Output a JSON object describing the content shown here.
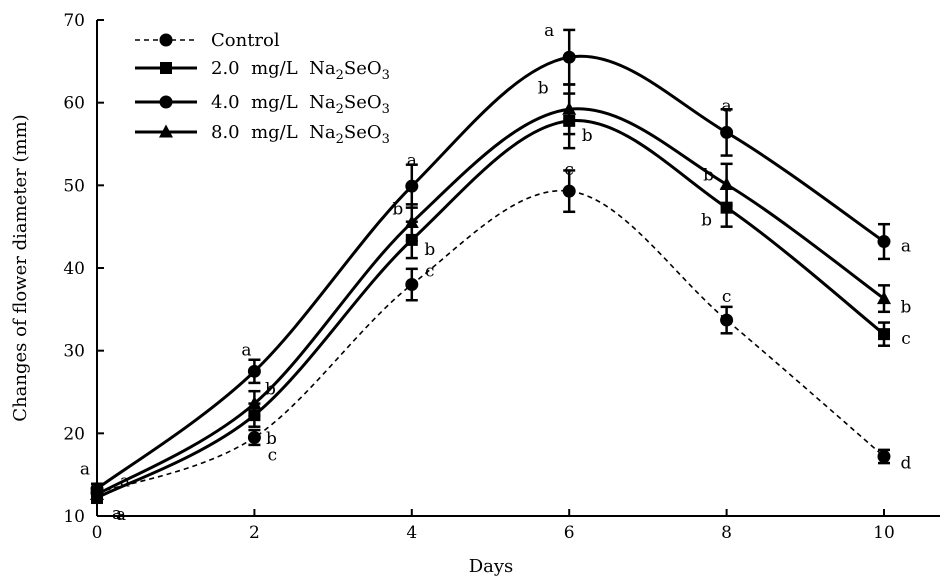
{
  "chart_data": {
    "type": "line",
    "title": "",
    "xlabel": "Days",
    "ylabel": "Changes of flower diameter (mm)",
    "x": [
      0,
      2,
      4,
      6,
      8,
      10
    ],
    "xlim": [
      0,
      10
    ],
    "ylim": [
      10,
      70
    ],
    "xticks": [
      "0",
      "2",
      "4",
      "6",
      "8",
      "10"
    ],
    "yticks": [
      "10",
      "20",
      "30",
      "40",
      "50",
      "60",
      "70"
    ],
    "grid": false,
    "legend_position": "top-left",
    "series": [
      {
        "name": "Control",
        "style": "dashed",
        "marker": "circle",
        "values": [
          12.8,
          19.5,
          38,
          49.3,
          33.7,
          17.2
        ],
        "errors": [
          0.6,
          0.9,
          1.9,
          2.5,
          1.6,
          0.8
        ],
        "letters": [
          "a",
          "c",
          "c",
          "c",
          "c",
          "d"
        ]
      },
      {
        "name": "2.0 mg/L Na2SeO3",
        "style": "solid",
        "marker": "square",
        "values": [
          12.2,
          22.2,
          43.4,
          57.8,
          47.3,
          32
        ],
        "errors": [
          0.6,
          1.4,
          2.2,
          3.3,
          2.3,
          1.4
        ],
        "letters": [
          "a",
          "b",
          "b",
          "b",
          "b",
          "c"
        ]
      },
      {
        "name": "4.0 mg/L Na2SeO3",
        "style": "solid",
        "marker": "circle",
        "values": [
          13.3,
          27.5,
          49.9,
          65.5,
          56.4,
          43.2
        ],
        "errors": [
          0.6,
          1.4,
          2.6,
          3.3,
          2.8,
          2.1
        ],
        "letters": [
          "a",
          "a",
          "a",
          "a",
          "a",
          "a"
        ]
      },
      {
        "name": "8.0 mg/L Na2SeO3",
        "style": "solid",
        "marker": "triangle",
        "values": [
          12.6,
          23.6,
          45.5,
          59.2,
          50.1,
          36.3
        ],
        "errors": [
          0.6,
          1.5,
          2.2,
          3.0,
          2.5,
          1.6
        ],
        "letters": [
          "a",
          "b",
          "b",
          "b",
          "b",
          "b"
        ]
      }
    ]
  },
  "legend": [
    {
      "marker": "circle",
      "style": "dashed",
      "text": "Control",
      "prefix": "",
      "chem_base": "",
      "chem_sub": "",
      "chem_tail": ""
    },
    {
      "marker": "square",
      "style": "solid",
      "text": "",
      "prefix": "2.0  mg/L  ",
      "chem_base": "Na",
      "chem_sub": "2",
      "chem_tail": "SeO",
      "chem_sub2": "3"
    },
    {
      "marker": "circle",
      "style": "solid",
      "text": "",
      "prefix": "4.0  mg/L  ",
      "chem_base": "Na",
      "chem_sub": "2",
      "chem_tail": "SeO",
      "chem_sub2": "3"
    },
    {
      "marker": "triangle",
      "style": "solid",
      "text": "",
      "prefix": "8.0  mg/L  ",
      "chem_base": "Na",
      "chem_sub": "2",
      "chem_tail": "SeO",
      "chem_sub2": "3"
    }
  ],
  "letter_labels": [
    {
      "series": 2,
      "point": 0,
      "text": "a"
    },
    {
      "series": 3,
      "point": 0,
      "text": "a"
    },
    {
      "series": 1,
      "point": 0,
      "text": "a"
    },
    {
      "series": 0,
      "point": 0,
      "text": "a"
    }
  ]
}
